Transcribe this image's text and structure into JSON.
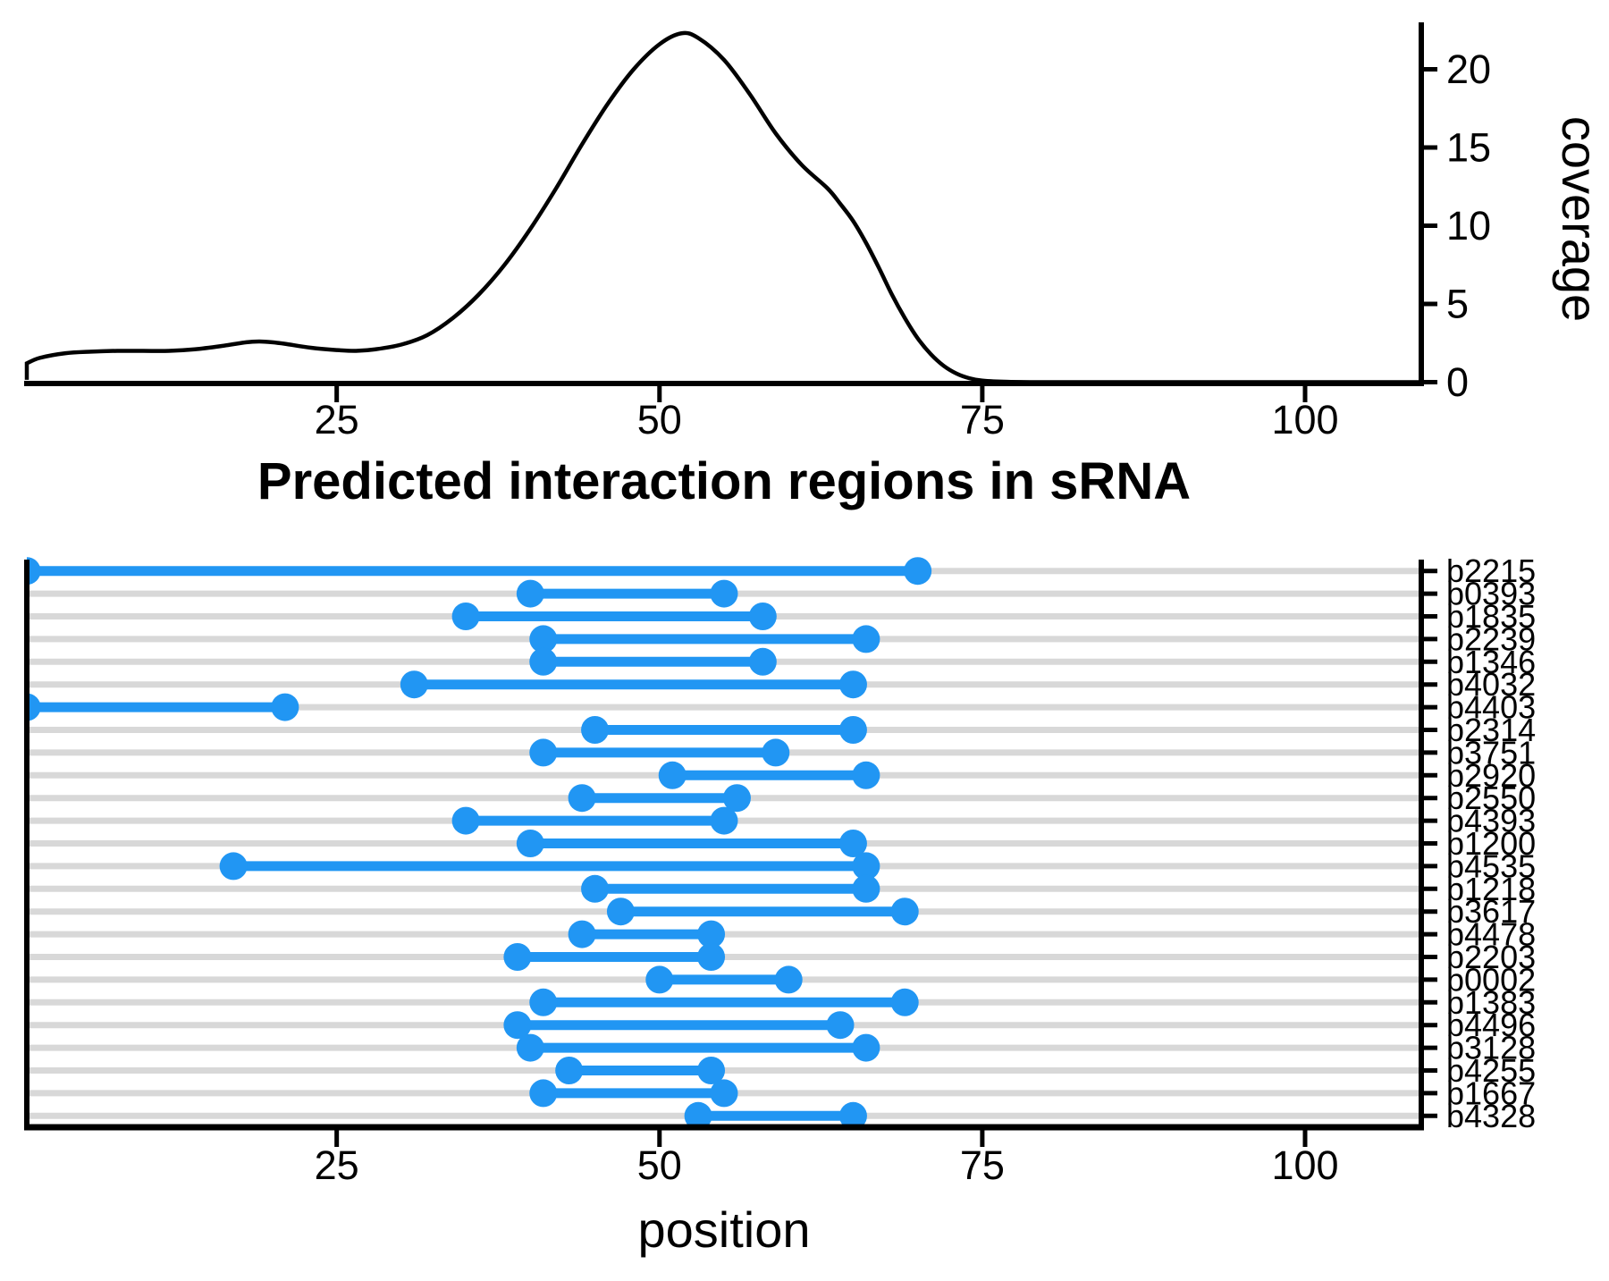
{
  "title": "Predicted interaction regions in sRNA",
  "colors": {
    "segment": "#2196F3",
    "gridline": "#D8D8D8",
    "axis": "#000000",
    "curve": "#000000",
    "background": "#FFFFFF"
  },
  "top_panel": {
    "y_axis": {
      "label": "coverage",
      "ticks": [
        0,
        5,
        10,
        15,
        20
      ],
      "range": [
        0,
        22.9
      ],
      "side": "right"
    },
    "x_axis": {
      "ticks": [
        25,
        50,
        75,
        100
      ],
      "range": [
        1,
        109
      ],
      "labels_hidden": false
    }
  },
  "bottom_panel": {
    "x_axis": {
      "label": "position",
      "ticks": [
        25,
        50,
        75,
        100
      ],
      "range": [
        1,
        109
      ]
    },
    "y_axis": {
      "side": "right"
    }
  },
  "chart_data": [
    {
      "type": "area",
      "name": "coverage-density",
      "title": "",
      "xlabel": "",
      "ylabel": "coverage",
      "ylim": [
        0,
        22.9
      ],
      "xlim": [
        1,
        109
      ],
      "grid": false,
      "x": [
        1,
        1,
        2,
        4,
        6,
        8,
        10,
        12,
        14,
        16,
        18,
        19,
        20,
        21,
        23,
        25,
        26.5,
        28,
        30,
        32,
        34,
        36,
        38,
        40,
        42,
        44,
        46,
        48,
        50,
        51.7,
        53,
        55,
        57,
        59,
        61,
        63,
        64,
        65,
        66,
        67,
        68,
        69,
        70,
        71,
        72,
        73,
        74,
        75,
        77,
        80,
        85,
        90,
        95,
        100,
        105,
        109
      ],
      "y": [
        0.15,
        1.2,
        1.55,
        1.85,
        1.95,
        2.0,
        2.0,
        2.0,
        2.1,
        2.3,
        2.55,
        2.6,
        2.55,
        2.45,
        2.2,
        2.05,
        2.0,
        2.1,
        2.4,
        3.0,
        4.1,
        5.6,
        7.5,
        9.8,
        12.4,
        15.2,
        17.8,
        20.0,
        21.6,
        22.3,
        22.0,
        20.6,
        18.4,
        15.9,
        13.9,
        12.4,
        11.4,
        10.3,
        8.9,
        7.3,
        5.6,
        4.1,
        2.8,
        1.8,
        1.05,
        0.55,
        0.25,
        0.1,
        0.02,
        0,
        0,
        0,
        0,
        0,
        0,
        0
      ]
    },
    {
      "type": "segment",
      "name": "predicted-interaction-regions",
      "title": "Predicted interaction regions in sRNA",
      "xlabel": "position",
      "xlim": [
        1,
        109
      ],
      "grid": "horizontal",
      "rows": [
        {
          "label": "b2215",
          "start": 1,
          "end": 70
        },
        {
          "label": "b0393",
          "start": 40,
          "end": 55
        },
        {
          "label": "b1835",
          "start": 35,
          "end": 58
        },
        {
          "label": "b2239",
          "start": 41,
          "end": 66
        },
        {
          "label": "b1346",
          "start": 41,
          "end": 58
        },
        {
          "label": "b4032",
          "start": 31,
          "end": 65
        },
        {
          "label": "b4403",
          "start": 1,
          "end": 21
        },
        {
          "label": "b2314",
          "start": 45,
          "end": 65
        },
        {
          "label": "b3751",
          "start": 41,
          "end": 59
        },
        {
          "label": "b2920",
          "start": 51,
          "end": 66
        },
        {
          "label": "b2550",
          "start": 44,
          "end": 56
        },
        {
          "label": "b4393",
          "start": 35,
          "end": 55
        },
        {
          "label": "b1200",
          "start": 40,
          "end": 65
        },
        {
          "label": "b4535",
          "start": 17,
          "end": 66
        },
        {
          "label": "b1218",
          "start": 45,
          "end": 66
        },
        {
          "label": "b3617",
          "start": 47,
          "end": 69
        },
        {
          "label": "b4478",
          "start": 44,
          "end": 54
        },
        {
          "label": "b2203",
          "start": 39,
          "end": 54
        },
        {
          "label": "b0002",
          "start": 50,
          "end": 60
        },
        {
          "label": "b1383",
          "start": 41,
          "end": 69
        },
        {
          "label": "b4496",
          "start": 39,
          "end": 64
        },
        {
          "label": "b3128",
          "start": 40,
          "end": 66
        },
        {
          "label": "b4255",
          "start": 43,
          "end": 54
        },
        {
          "label": "b1667",
          "start": 41,
          "end": 55
        },
        {
          "label": "b4328",
          "start": 53,
          "end": 65
        }
      ]
    }
  ]
}
